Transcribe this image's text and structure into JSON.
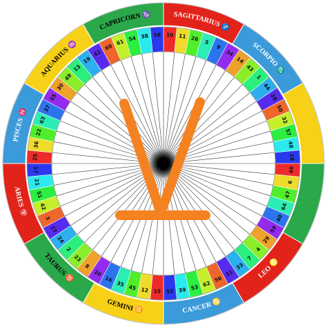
{
  "signs": [
    {
      "label": "SAGITTARIUS ♐"
    },
    {
      "label": "SCORPIO ♏"
    },
    {
      "label": null
    },
    {
      "label": null
    },
    {
      "label": "LEO ♌"
    },
    {
      "label": "CANCER ♋"
    },
    {
      "label": "GEMINI ♊"
    },
    {
      "label": "TAURUS ♉"
    },
    {
      "label": "ARIES ♈"
    },
    {
      "label": "PISCES ♓"
    },
    {
      "label": "AQUARIUS ♒"
    },
    {
      "label": "CAPRICORN ♑"
    }
  ],
  "gates": [
    10,
    11,
    26,
    5,
    9,
    34,
    14,
    43,
    1,
    44,
    28,
    50,
    32,
    57,
    48,
    18,
    46,
    6,
    47,
    64,
    40,
    59,
    29,
    4,
    7,
    33,
    31,
    56,
    62,
    53,
    39,
    52,
    15,
    12,
    45,
    35,
    16,
    20,
    8,
    23,
    2,
    24,
    27,
    3,
    42,
    51,
    21,
    17,
    25,
    36,
    22,
    63,
    37,
    55,
    30,
    49,
    13,
    19,
    41,
    60,
    61,
    54,
    38,
    58
  ]
}
